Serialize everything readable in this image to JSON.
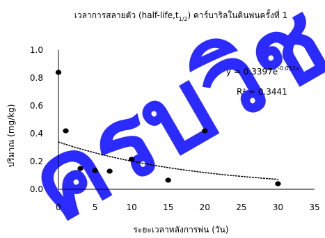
{
  "chart_data": {
    "type": "scatter",
    "title": "เวลาการสลายตัว (half-life,t",
    "title_subscript": "1/2",
    "title_suffix": ") คาร์บาริลในดินพ่นครั้งที่ 1",
    "xlabel": "ระยะเวลาหลังการพ่น (วัน)",
    "ylabel": "ปริมาณ (mg/kg)",
    "xlim": [
      0,
      35
    ],
    "ylim": [
      0,
      1.0
    ],
    "xticks": [
      "0",
      "5",
      "10",
      "15",
      "20",
      "25",
      "30",
      "35"
    ],
    "yticks": [
      "0.0",
      "0.2",
      "0.4",
      "0.6",
      "0.8",
      "1.0"
    ],
    "grid": false,
    "series": [
      {
        "points": [
          {
            "x": 0,
            "y": 0.84
          },
          {
            "x": 1,
            "y": 0.42
          },
          {
            "x": 3,
            "y": 0.15
          },
          {
            "x": 5,
            "y": 0.135
          },
          {
            "x": 7,
            "y": 0.13
          },
          {
            "x": 10,
            "y": 0.215
          },
          {
            "x": 15,
            "y": 0.065
          },
          {
            "x": 20,
            "y": 0.42
          },
          {
            "x": 30,
            "y": 0.04
          }
        ],
        "color": "#000000"
      }
    ],
    "trendline": {
      "type": "exponential",
      "a": 0.3397,
      "b": -0.052,
      "style": "dotted",
      "color": "#000000"
    },
    "equation_prefix": "y = 0.3397e",
    "equation_exponent": "-0.052x",
    "r_squared_label": "R² = 0.3441",
    "watermark": {
      "text": "ครบวิช",
      "color": "#1a1aff"
    }
  }
}
